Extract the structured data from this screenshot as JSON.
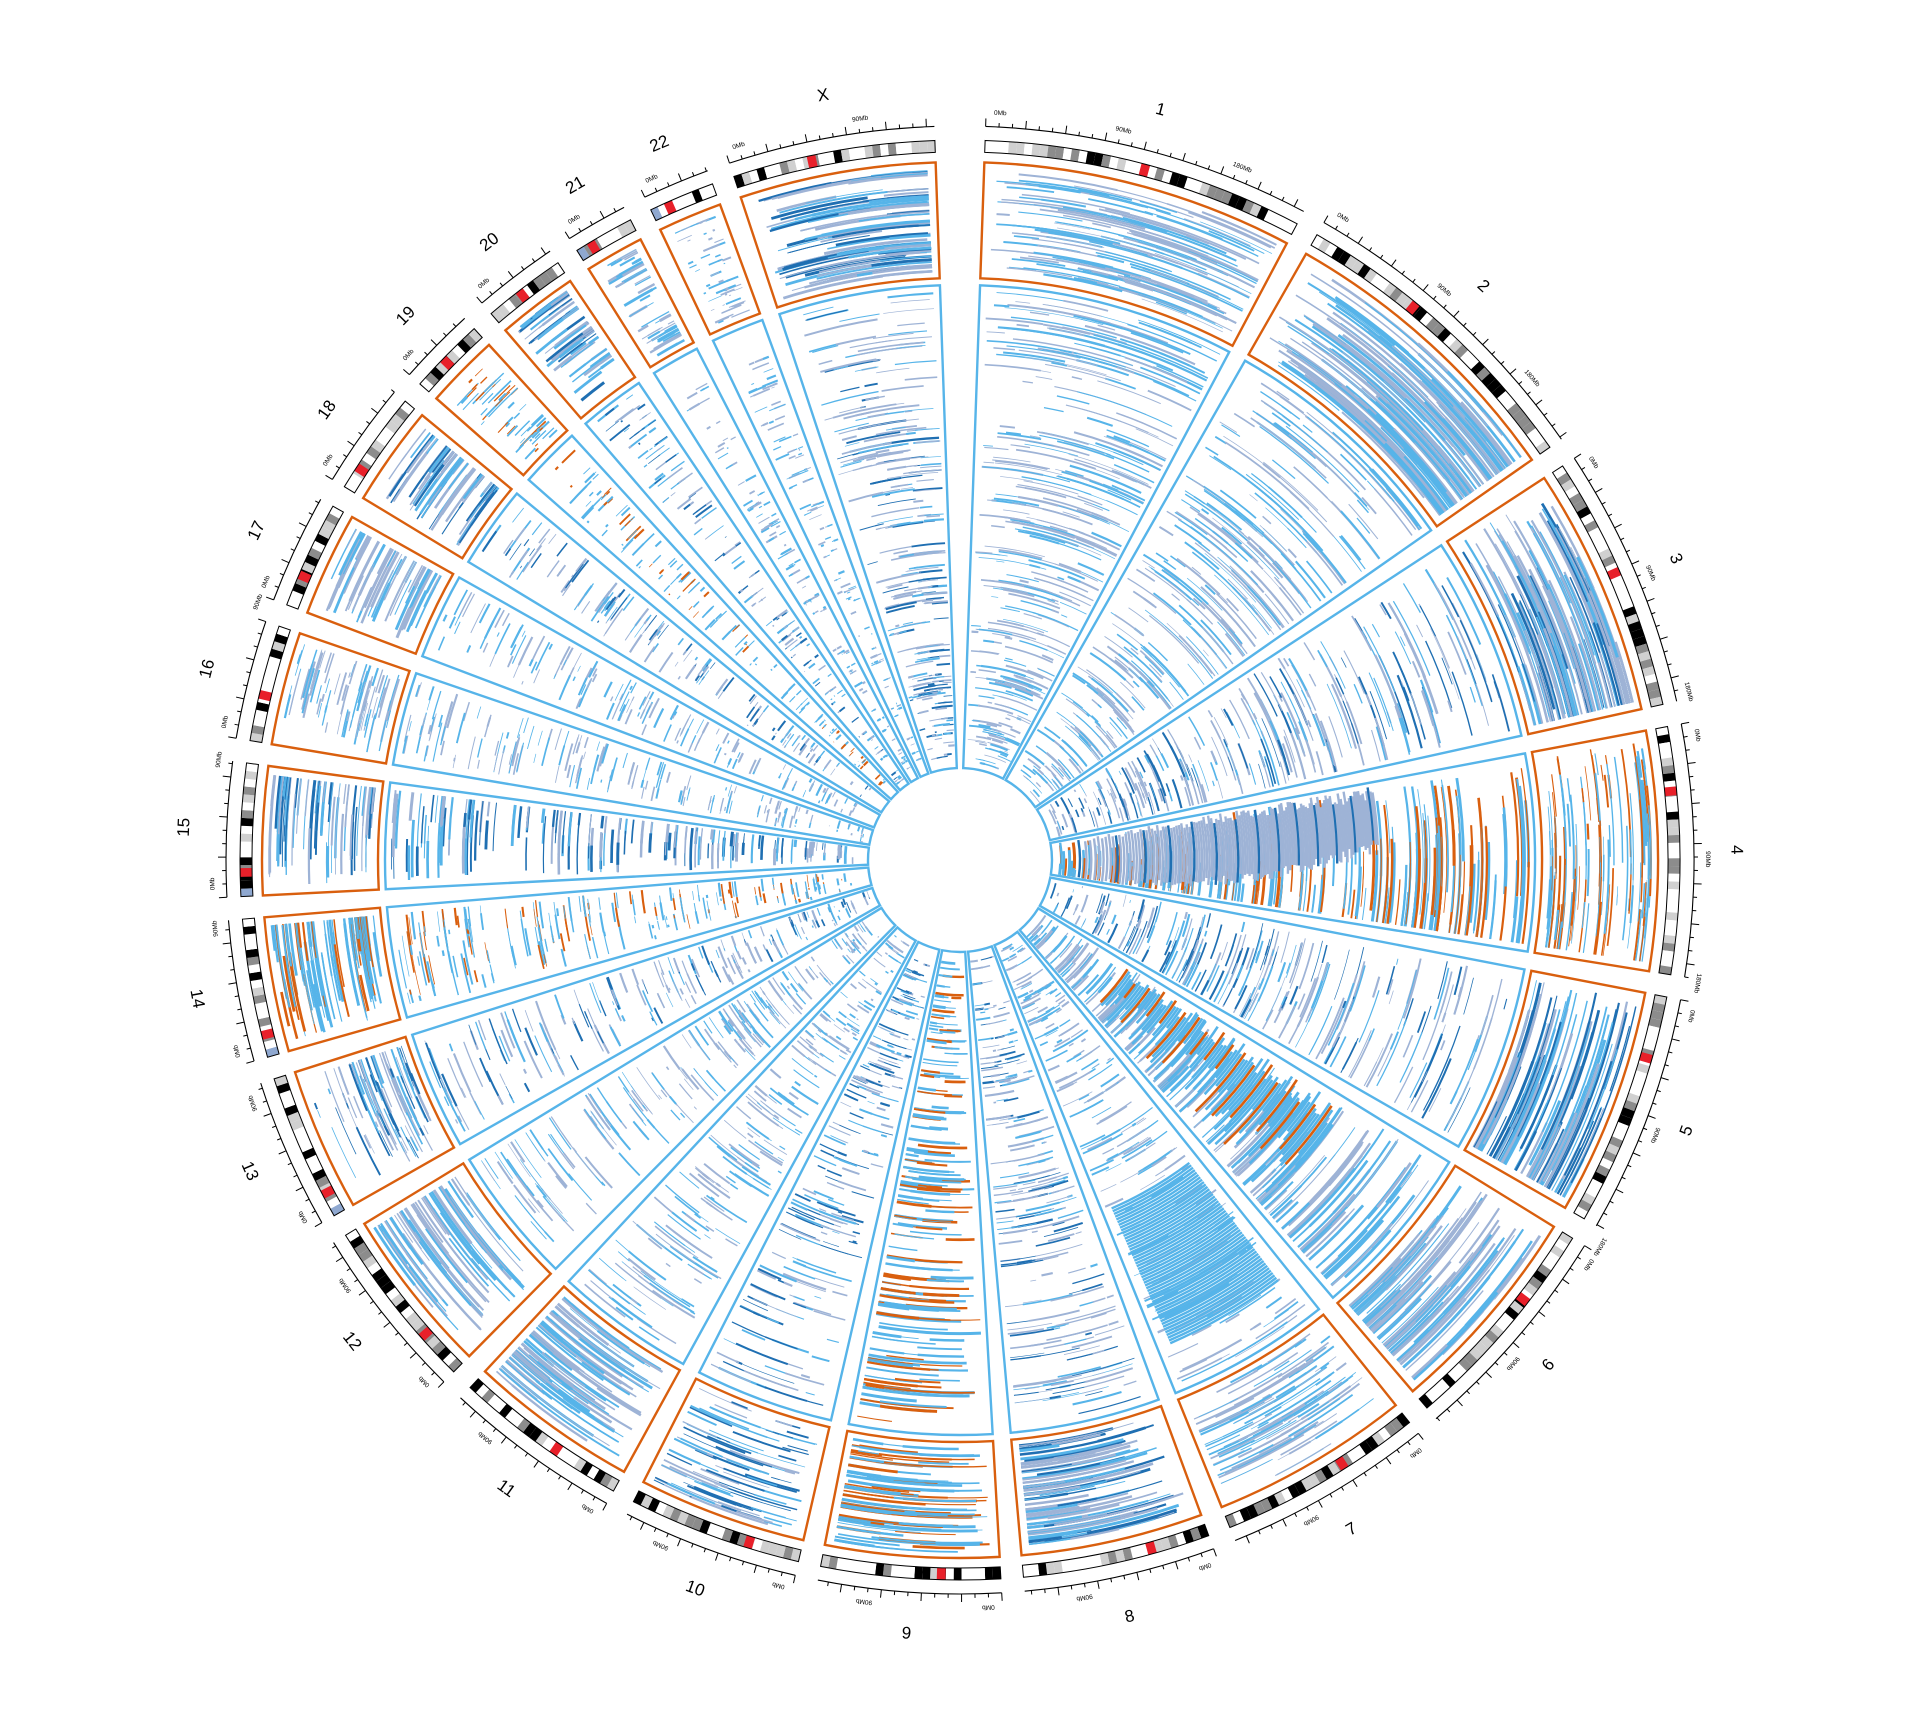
{
  "diagram": {
    "type": "circos",
    "colors": {
      "outer_track_border": "#d95f0e",
      "inner_track_border": "#56b4e9",
      "mark_light": "#9eb3d6",
      "mark_medium": "#56b4e9",
      "mark_dark": "#1f6fb2",
      "mark_orange": "#d95f0e",
      "ideogram_centromere": "#e8202a",
      "ideogram_dark": "#000000",
      "ideogram_grey": "#8c8c8c",
      "ideogram_light": "#d0d0d0",
      "ideogram_acro": "#8fa8d0"
    },
    "chromosomes": [
      {
        "name": "1",
        "size": 248,
        "centromere": 0.5,
        "ticks": [
          "0Mb",
          "90Mb",
          "180Mb"
        ]
      },
      {
        "name": "2",
        "size": 242,
        "centromere": 0.38,
        "ticks": [
          "0Mb",
          "90Mb",
          "180Mb"
        ]
      },
      {
        "name": "3",
        "size": 198,
        "centromere": 0.46,
        "ticks": [
          "0Mb",
          "90Mb",
          "180Mb"
        ]
      },
      {
        "name": "4",
        "size": 190,
        "centromere": 0.26,
        "ticks": [
          "0Mb",
          "90Mb",
          "180Mb"
        ]
      },
      {
        "name": "5",
        "size": 181,
        "centromere": 0.27,
        "ticks": [
          "0Mb",
          "90Mb",
          "180Mb"
        ]
      },
      {
        "name": "6",
        "size": 171,
        "centromere": 0.35,
        "ticks": [
          "0Mb",
          "90Mb"
        ]
      },
      {
        "name": "7",
        "size": 159,
        "centromere": 0.38,
        "ticks": [
          "0Mb",
          "90Mb"
        ]
      },
      {
        "name": "8",
        "size": 145,
        "centromere": 0.31,
        "ticks": [
          "0Mb",
          "90Mb"
        ]
      },
      {
        "name": "9",
        "size": 138,
        "centromere": 0.33,
        "ticks": [
          "0Mb",
          "90Mb"
        ]
      },
      {
        "name": "10",
        "size": 134,
        "centromere": 0.3,
        "ticks": [
          "0Mb",
          "90Mb"
        ]
      },
      {
        "name": "11",
        "size": 135,
        "centromere": 0.4,
        "ticks": [
          "0Mb",
          "90Mb"
        ]
      },
      {
        "name": "12",
        "size": 133,
        "centromere": 0.27,
        "ticks": [
          "0Mb",
          "90Mb"
        ]
      },
      {
        "name": "13",
        "size": 114,
        "centromere": 0.16,
        "ticks": [
          "0Mb",
          "90Mb"
        ]
      },
      {
        "name": "14",
        "size": 107,
        "centromere": 0.16,
        "ticks": [
          "0Mb",
          "90Mb"
        ]
      },
      {
        "name": "15",
        "size": 102,
        "centromere": 0.18,
        "ticks": [
          "0Mb",
          "90Mb"
        ]
      },
      {
        "name": "16",
        "size": 90,
        "centromere": 0.4,
        "ticks": [
          "0Mb",
          "90Mb"
        ]
      },
      {
        "name": "17",
        "size": 83,
        "centromere": 0.3,
        "ticks": [
          "0Mb"
        ]
      },
      {
        "name": "18",
        "size": 80,
        "centromere": 0.22,
        "ticks": [
          "0Mb"
        ]
      },
      {
        "name": "19",
        "size": 59,
        "centromere": 0.44,
        "ticks": [
          "0Mb"
        ]
      },
      {
        "name": "20",
        "size": 64,
        "centromere": 0.43,
        "ticks": [
          "0Mb"
        ]
      },
      {
        "name": "21",
        "size": 47,
        "centromere": 0.26,
        "ticks": [
          "0Mb"
        ]
      },
      {
        "name": "22",
        "size": 51,
        "centromere": 0.28,
        "ticks": [
          "0Mb"
        ]
      },
      {
        "name": "X",
        "size": 156,
        "centromere": 0.39,
        "ticks": [
          "0Mb",
          "90Mb"
        ]
      }
    ]
  }
}
